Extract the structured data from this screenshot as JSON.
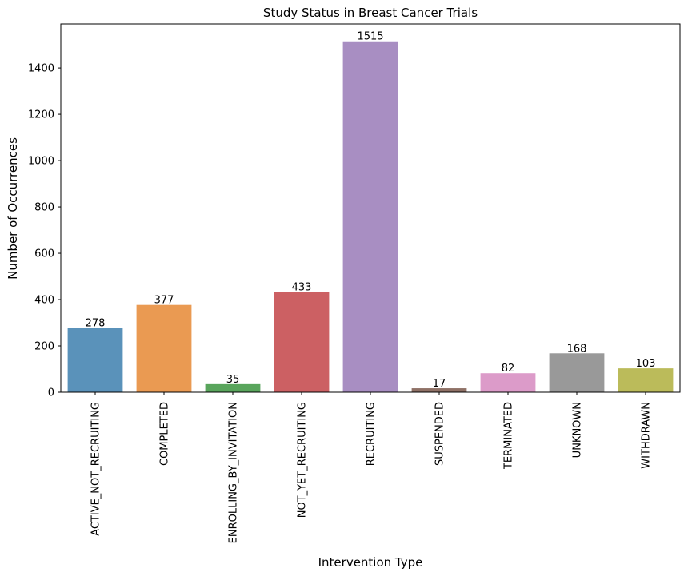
{
  "chart_data": {
    "type": "bar",
    "title": "Study Status in Breast Cancer Trials",
    "xlabel": "Intervention Type",
    "ylabel": "Number of Occurrences",
    "categories": [
      "ACTIVE_NOT_RECRUITING",
      "COMPLETED",
      "ENROLLING_BY_INVITATION",
      "NOT_YET_RECRUITING",
      "RECRUITING",
      "SUSPENDED",
      "TERMINATED",
      "UNKNOWN",
      "WITHDRAWN"
    ],
    "values": [
      278,
      377,
      35,
      433,
      1515,
      17,
      82,
      168,
      103
    ],
    "colors": [
      "#5a92ba",
      "#ea9a52",
      "#59a55c",
      "#cc6063",
      "#a88ec2",
      "#8f7166",
      "#dc9bc9",
      "#999999",
      "#bbbb5a"
    ],
    "ylim": [
      0,
      1590
    ],
    "yticks": [
      0,
      200,
      400,
      600,
      800,
      1000,
      1200,
      1400
    ],
    "grid": false,
    "legend": "none"
  }
}
